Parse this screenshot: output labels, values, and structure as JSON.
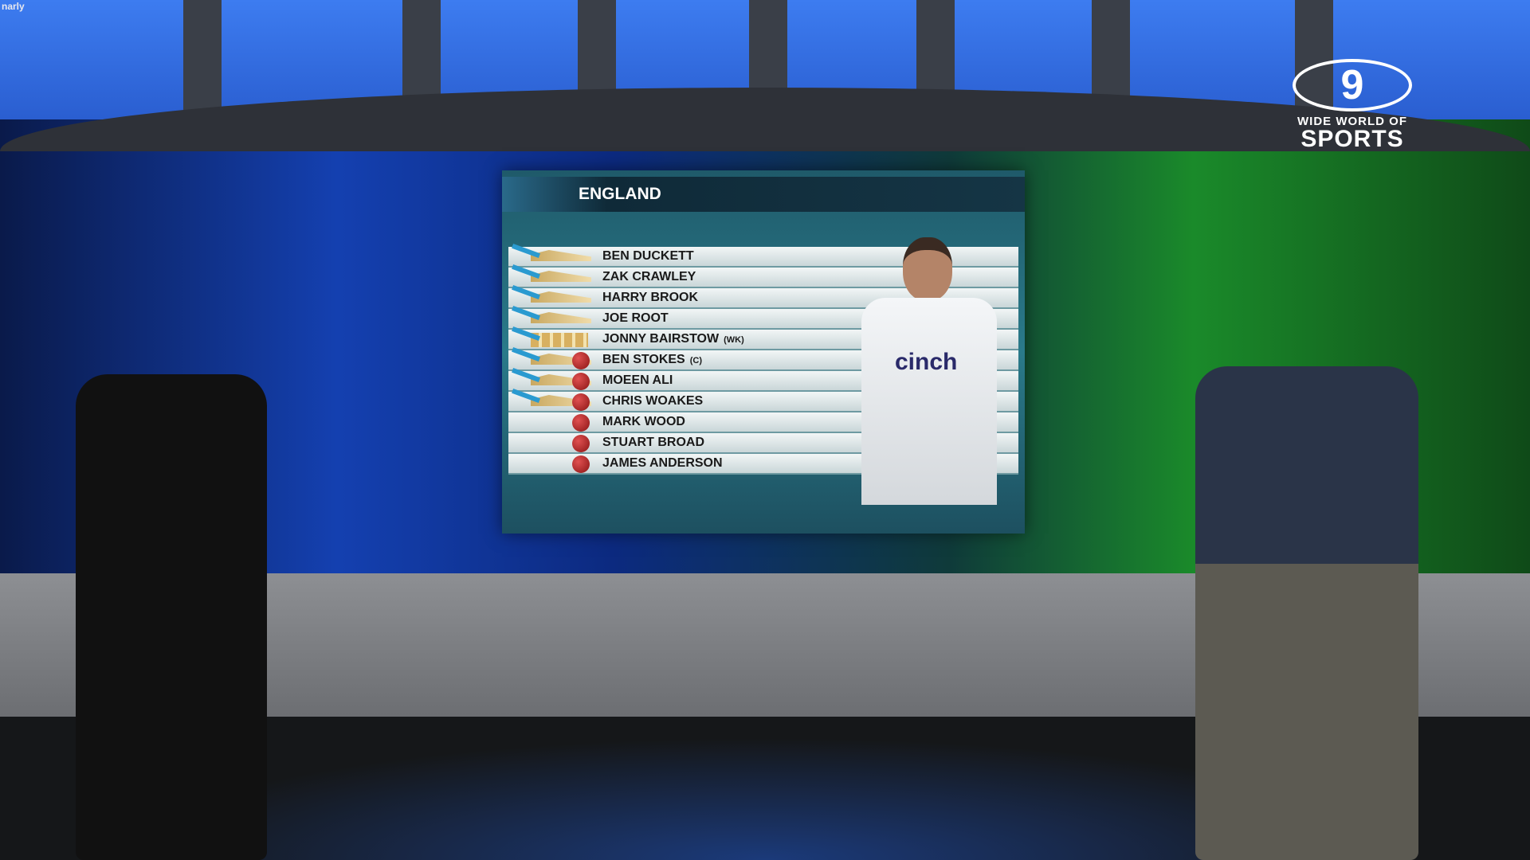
{
  "channel_corner_text": "narly",
  "logo": {
    "mark": "9",
    "line1": "WIDE WORLD OF",
    "line2": "SPORTS"
  },
  "board": {
    "title": "ENGLAND",
    "players": [
      {
        "name": "BEN DUCKETT",
        "tag": "",
        "role": "bat"
      },
      {
        "name": "ZAK CRAWLEY",
        "tag": "",
        "role": "bat"
      },
      {
        "name": "HARRY BROOK",
        "tag": "",
        "role": "bat"
      },
      {
        "name": "JOE ROOT",
        "tag": "",
        "role": "bat"
      },
      {
        "name": "JONNY BAIRSTOW",
        "tag": "(WK)",
        "role": "keeper"
      },
      {
        "name": "BEN STOKES",
        "tag": "(C)",
        "role": "allrounder"
      },
      {
        "name": "MOEEN ALI",
        "tag": "",
        "role": "allrounder"
      },
      {
        "name": "CHRIS WOAKES",
        "tag": "",
        "role": "allrounder"
      },
      {
        "name": "MARK WOOD",
        "tag": "",
        "role": "bowler"
      },
      {
        "name": "STUART BROAD",
        "tag": "",
        "role": "bowler"
      },
      {
        "name": "JAMES ANDERSON",
        "tag": "",
        "role": "bowler"
      }
    ],
    "shirt_sponsor": "cinch"
  }
}
